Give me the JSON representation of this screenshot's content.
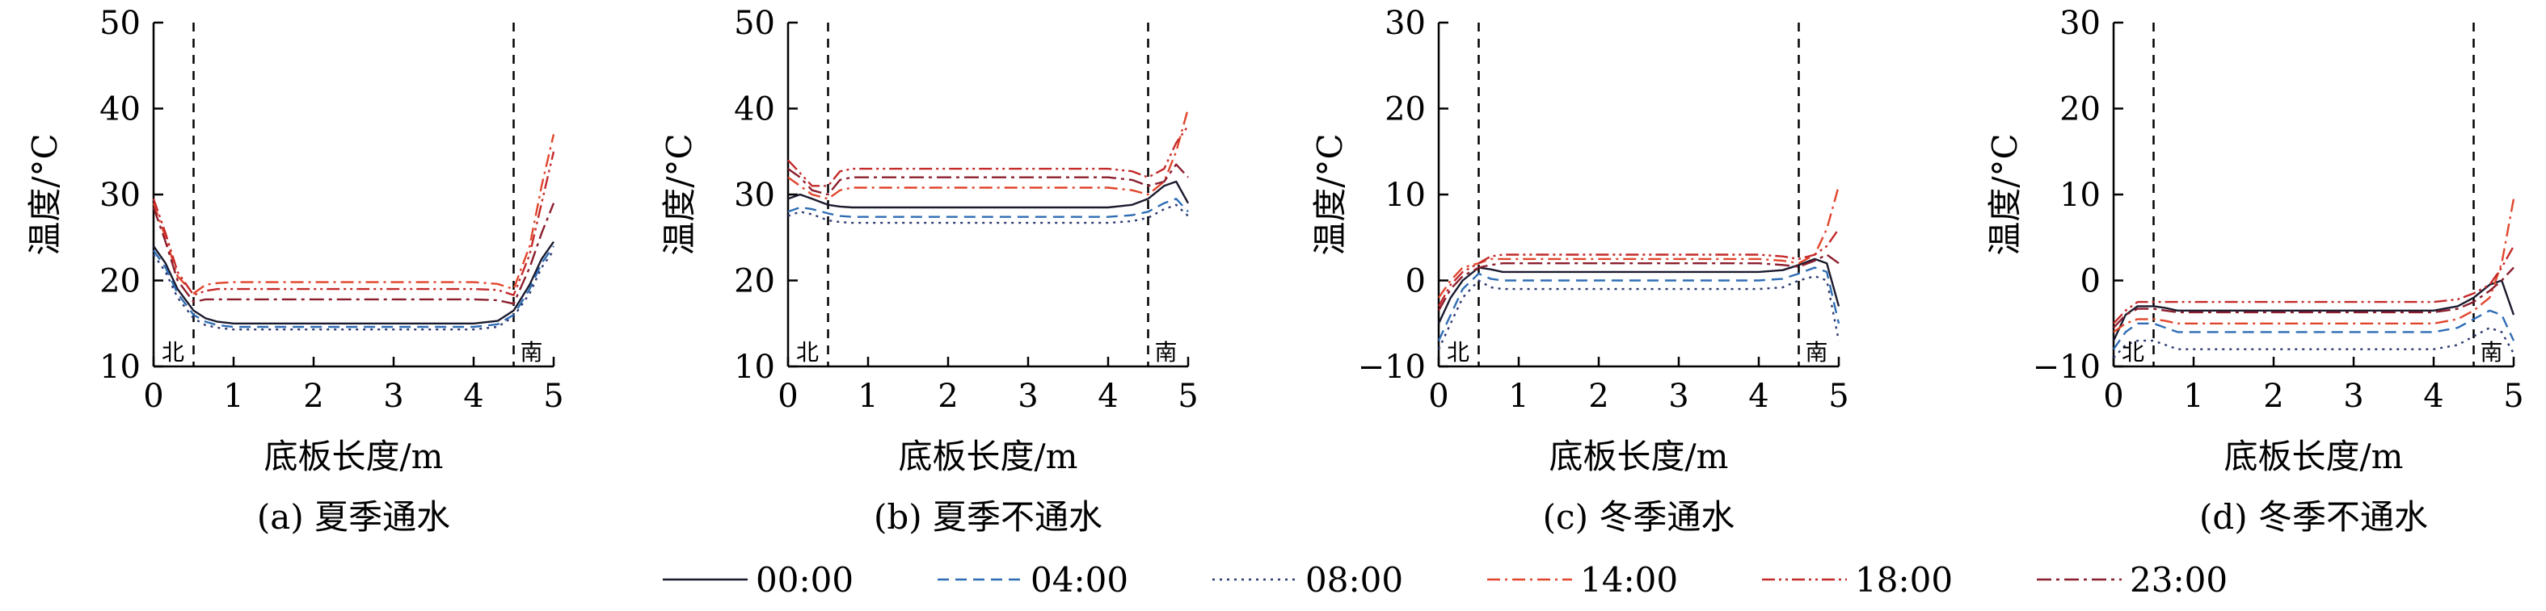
{
  "chart_data": [
    {
      "type": "line",
      "caption": "(a) 夏季通水",
      "xlabel": "底板长度/m",
      "ylabel": "温度/°C",
      "xlim": [
        0,
        5
      ],
      "ylim": [
        10,
        50
      ],
      "xticks": [
        "0",
        "1",
        "2",
        "3",
        "4",
        "5"
      ],
      "yticks": [
        "10",
        "20",
        "30",
        "40",
        "50"
      ],
      "x": [
        0,
        0.15,
        0.3,
        0.5,
        0.65,
        0.8,
        1,
        2,
        3,
        4,
        4.3,
        4.5,
        4.7,
        4.85,
        5
      ],
      "series": [
        {
          "name": "00:00",
          "values": [
            24,
            22,
            19,
            16.5,
            15.6,
            15.2,
            15,
            15,
            15,
            15,
            15.3,
            16.5,
            19.5,
            22.5,
            24.5
          ]
        },
        {
          "name": "04:00",
          "values": [
            23.5,
            21.5,
            18.5,
            16,
            15.2,
            14.8,
            14.6,
            14.6,
            14.6,
            14.6,
            14.9,
            16,
            19,
            22,
            24
          ]
        },
        {
          "name": "08:00",
          "values": [
            23,
            21,
            18,
            15.6,
            14.8,
            14.5,
            14.3,
            14.3,
            14.3,
            14.3,
            14.6,
            15.8,
            18.5,
            21.5,
            23.5
          ]
        },
        {
          "name": "14:00",
          "values": [
            29,
            25,
            20.5,
            18.5,
            19.5,
            19.7,
            19.8,
            19.8,
            19.8,
            19.8,
            19.6,
            19,
            24,
            31,
            37
          ]
        },
        {
          "name": "18:00",
          "values": [
            29.5,
            25.5,
            21,
            18.3,
            18.8,
            19,
            19,
            19,
            19,
            19,
            18.9,
            18.3,
            23,
            29,
            35
          ]
        },
        {
          "name": "23:00",
          "values": [
            28.5,
            24.5,
            20,
            17.5,
            17.8,
            17.8,
            17.8,
            17.8,
            17.8,
            17.8,
            17.7,
            17.3,
            21.5,
            25.5,
            29
          ]
        }
      ],
      "region_labels": [
        "北",
        "南"
      ],
      "dashed_x": [
        0.5,
        4.5
      ]
    },
    {
      "type": "line",
      "caption": "(b) 夏季不通水",
      "xlabel": "底板长度/m",
      "ylabel": "温度/°C",
      "xlim": [
        0,
        5
      ],
      "ylim": [
        10,
        50
      ],
      "xticks": [
        "0",
        "1",
        "2",
        "3",
        "4",
        "5"
      ],
      "yticks": [
        "10",
        "20",
        "30",
        "40",
        "50"
      ],
      "x": [
        0,
        0.15,
        0.3,
        0.5,
        0.65,
        0.8,
        1,
        2,
        3,
        4,
        4.3,
        4.5,
        4.7,
        4.85,
        5
      ],
      "series": [
        {
          "name": "00:00",
          "values": [
            29.5,
            30,
            29.5,
            28.8,
            28.6,
            28.5,
            28.5,
            28.5,
            28.5,
            28.5,
            28.8,
            29.5,
            31,
            31.5,
            29
          ]
        },
        {
          "name": "04:00",
          "values": [
            28,
            28.5,
            28.3,
            27.8,
            27.5,
            27.4,
            27.4,
            27.4,
            27.4,
            27.4,
            27.6,
            28,
            29,
            29.5,
            28
          ]
        },
        {
          "name": "08:00",
          "values": [
            27.5,
            28,
            27.7,
            27,
            26.8,
            26.7,
            26.7,
            26.7,
            26.7,
            26.7,
            26.9,
            27.3,
            28.3,
            28.8,
            27.5
          ]
        },
        {
          "name": "14:00",
          "values": [
            32,
            31,
            30,
            29.5,
            30.5,
            30.8,
            30.8,
            30.8,
            30.8,
            30.8,
            30.5,
            30,
            31.5,
            35,
            40
          ]
        },
        {
          "name": "18:00",
          "values": [
            34,
            32.5,
            31,
            31,
            32.7,
            33,
            33,
            33,
            33,
            33,
            32.7,
            32,
            33,
            36,
            38
          ]
        },
        {
          "name": "23:00",
          "values": [
            33,
            32,
            30.5,
            30,
            31.7,
            32,
            32,
            32,
            32,
            32,
            31.7,
            31,
            31.5,
            33.5,
            32
          ]
        }
      ],
      "region_labels": [
        "北",
        "南"
      ],
      "dashed_x": [
        0.5,
        4.5
      ]
    },
    {
      "type": "line",
      "caption": "(c) 冬季通水",
      "xlabel": "底板长度/m",
      "ylabel": "温度/°C",
      "xlim": [
        0,
        5
      ],
      "ylim": [
        -10,
        30
      ],
      "xticks": [
        "0",
        "1",
        "2",
        "3",
        "4",
        "5"
      ],
      "yticks": [
        "−10",
        "0",
        "10",
        "20",
        "30"
      ],
      "x": [
        0,
        0.15,
        0.3,
        0.5,
        0.65,
        0.8,
        1,
        2,
        3,
        4,
        4.3,
        4.5,
        4.7,
        4.85,
        5
      ],
      "series": [
        {
          "name": "00:00",
          "values": [
            -5,
            -2,
            0,
            1.5,
            1.3,
            1,
            1,
            1,
            1,
            1,
            1.2,
            1.8,
            2.5,
            2,
            -3
          ]
        },
        {
          "name": "04:00",
          "values": [
            -7,
            -4,
            -1,
            0.8,
            0.2,
            0,
            0,
            0,
            0,
            0,
            0.2,
            0.8,
            1.5,
            1,
            -5
          ]
        },
        {
          "name": "08:00",
          "values": [
            -8,
            -5,
            -2,
            0,
            -0.8,
            -1,
            -1,
            -1,
            -1,
            -1,
            -0.8,
            0,
            0.5,
            0,
            -7
          ]
        },
        {
          "name": "14:00",
          "values": [
            -2,
            0,
            1.5,
            2,
            2.5,
            2.5,
            2.5,
            2.5,
            2.5,
            2.5,
            2.3,
            2,
            3,
            6,
            11
          ]
        },
        {
          "name": "18:00",
          "values": [
            -3,
            -0.5,
            1,
            2,
            2.8,
            3,
            3,
            3,
            3,
            3,
            2.8,
            2.5,
            3,
            4,
            6
          ]
        },
        {
          "name": "23:00",
          "values": [
            -3.5,
            -1,
            0.5,
            1.5,
            1.8,
            2,
            2,
            2,
            2,
            2,
            1.8,
            1.6,
            2.3,
            3,
            2
          ]
        }
      ],
      "region_labels": [
        "北",
        "南"
      ],
      "dashed_x": [
        0.5,
        4.5
      ]
    },
    {
      "type": "line",
      "caption": "(d) 冬季不通水",
      "xlabel": "底板长度/m",
      "ylabel": "温度/°C",
      "xlim": [
        0,
        5
      ],
      "ylim": [
        -10,
        30
      ],
      "xticks": [
        "0",
        "1",
        "2",
        "3",
        "4",
        "5"
      ],
      "yticks": [
        "−10",
        "0",
        "10",
        "20",
        "30"
      ],
      "x": [
        0,
        0.15,
        0.3,
        0.5,
        0.65,
        0.8,
        1,
        2,
        3,
        4,
        4.3,
        4.5,
        4.7,
        4.85,
        5
      ],
      "series": [
        {
          "name": "00:00",
          "values": [
            -7,
            -4,
            -3,
            -3,
            -3.2,
            -3.5,
            -3.5,
            -3.5,
            -3.5,
            -3.5,
            -3,
            -2,
            -0.5,
            0,
            -4
          ]
        },
        {
          "name": "04:00",
          "values": [
            -8,
            -6,
            -5,
            -5,
            -5.5,
            -6,
            -6,
            -6,
            -6,
            -6,
            -5.5,
            -4.5,
            -3.5,
            -4,
            -7
          ]
        },
        {
          "name": "08:00",
          "values": [
            -9,
            -7.5,
            -7,
            -7,
            -7.5,
            -8,
            -8,
            -8,
            -8,
            -8,
            -7.5,
            -6.5,
            -5.5,
            -6,
            -8.5
          ]
        },
        {
          "name": "14:00",
          "values": [
            -6,
            -5,
            -4.5,
            -4.5,
            -4.7,
            -5,
            -5,
            -5,
            -5,
            -5,
            -4.5,
            -3.5,
            -2,
            2,
            9.5
          ]
        },
        {
          "name": "18:00",
          "values": [
            -5,
            -3.5,
            -2.5,
            -2.5,
            -2.5,
            -2.5,
            -2.5,
            -2.5,
            -2.5,
            -2.5,
            -2.2,
            -1.5,
            -0.5,
            1.5,
            4
          ]
        },
        {
          "name": "23:00",
          "values": [
            -5.5,
            -4,
            -3.3,
            -3.3,
            -3.5,
            -3.7,
            -3.7,
            -3.7,
            -3.7,
            -3.7,
            -3.3,
            -2.5,
            -1.2,
            0,
            1.5
          ]
        }
      ],
      "region_labels": [
        "北",
        "南"
      ],
      "dashed_x": [
        0.5,
        4.5
      ]
    }
  ],
  "legend": [
    {
      "label": "00:00",
      "color": "#1a1a2e",
      "dash": ""
    },
    {
      "label": "04:00",
      "color": "#2e6db4",
      "dash": "14,8"
    },
    {
      "label": "08:00",
      "color": "#2e3a70",
      "dash": "3,6"
    },
    {
      "label": "14:00",
      "color": "#e0452b",
      "dash": "16,6,3,6"
    },
    {
      "label": "18:00",
      "color": "#c42a2a",
      "dash": "16,5,3,5,3,5"
    },
    {
      "label": "23:00",
      "color": "#8b1e2e",
      "dash": "18,6,4,6"
    }
  ]
}
